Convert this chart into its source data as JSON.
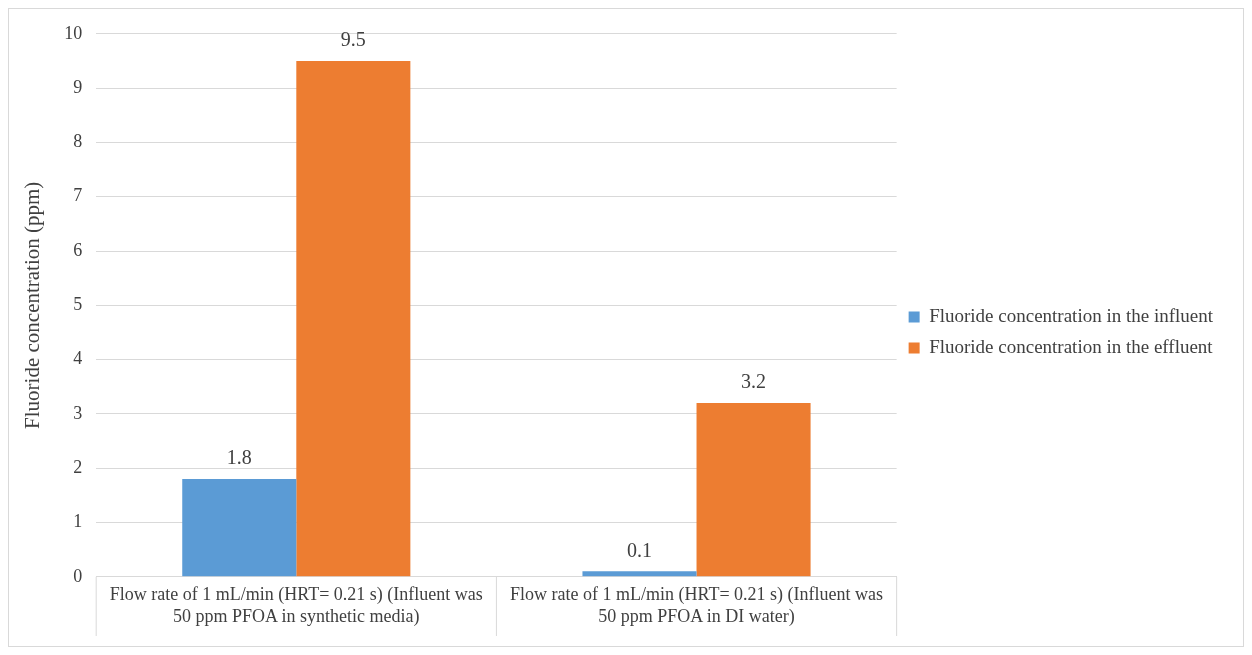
{
  "chart_data": {
    "type": "bar",
    "ylabel": "Fluoride concentration (ppm)",
    "categories": [
      "Flow rate of 1 mL/min (HRT= 0.21 s) (Influent was 50 ppm PFOA in synthetic media)",
      "Flow rate of 1 mL/min (HRT= 0.21 s) (Influent was 50 ppm PFOA in DI water)"
    ],
    "series": [
      {
        "name": "Fluoride concentration in the influent",
        "color": "#5b9bd5",
        "values": [
          1.8,
          0.1
        ]
      },
      {
        "name": "Fluoride concentration in the effluent",
        "color": "#ed7d31",
        "values": [
          9.5,
          3.2
        ]
      }
    ],
    "ylim": [
      0,
      10
    ],
    "yticks": [
      0,
      1,
      2,
      3,
      4,
      5,
      6,
      7,
      8,
      9,
      10
    ],
    "grid": "y",
    "legend": "right",
    "data_labels": true
  }
}
